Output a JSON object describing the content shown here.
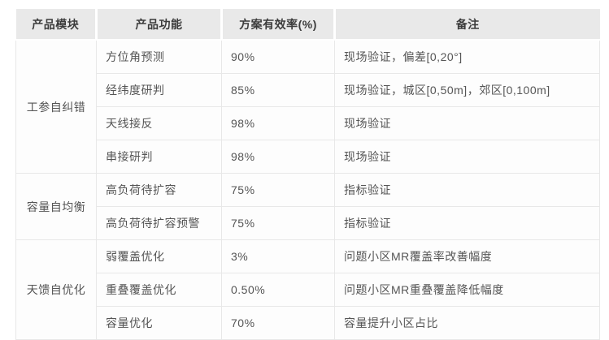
{
  "table": {
    "columns": [
      {
        "label": "产品模块"
      },
      {
        "label": "产品功能"
      },
      {
        "label": "方案有效率(%)"
      },
      {
        "label": "备注"
      }
    ],
    "groups": [
      {
        "module": "工参自纠错",
        "rows": [
          {
            "function": "方位角预测",
            "rate": "90%",
            "remark": "现场验证，偏差[0,20°]"
          },
          {
            "function": "经纬度研判",
            "rate": "85%",
            "remark": "现场验证，城区[0,50m]，郊区[0,100m]"
          },
          {
            "function": "天线接反",
            "rate": "98%",
            "remark": "现场验证"
          },
          {
            "function": "串接研判",
            "rate": "98%",
            "remark": "现场验证"
          }
        ]
      },
      {
        "module": "容量自均衡",
        "rows": [
          {
            "function": "高负荷待扩容",
            "rate": "75%",
            "remark": "指标验证"
          },
          {
            "function": "高负荷待扩容预警",
            "rate": "75%",
            "remark": "指标验证"
          }
        ]
      },
      {
        "module": "天馈自优化",
        "rows": [
          {
            "function": "弱覆盖优化",
            "rate": "3%",
            "remark": "问题小区MR覆盖率改善幅度"
          },
          {
            "function": "重叠覆盖优化",
            "rate": "0.50%",
            "remark": "问题小区MR重叠覆盖降低幅度"
          },
          {
            "function": "容量优化",
            "rate": "70%",
            "remark": "容量提升小区占比"
          }
        ]
      }
    ],
    "colors": {
      "header_bg": "#e9e9e9",
      "header_text": "#3c3c3c",
      "body_text": "#555555",
      "border": "#e8e8e8",
      "cell_bg": "#fdfdfd"
    }
  }
}
